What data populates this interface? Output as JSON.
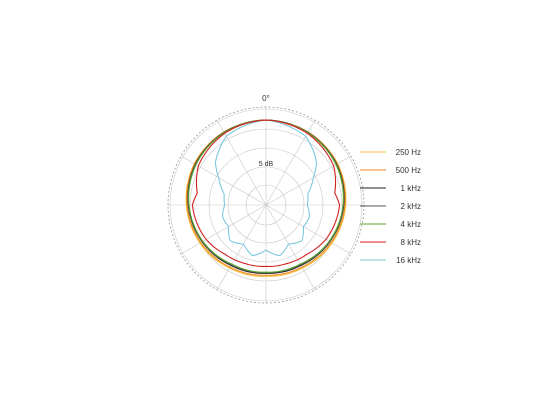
{
  "chart_data": {
    "type": "polar",
    "title": "",
    "angle_label": "0°",
    "radial_scale_label": "5 dB",
    "grid": true,
    "legend_position": "right",
    "series": [
      {
        "name": "250 Hz",
        "color": "#f5c242",
        "response_db_by_angle": [
          [
            0,
            0
          ],
          [
            30,
            -0.2
          ],
          [
            60,
            -0.6
          ],
          [
            90,
            -1.4
          ],
          [
            120,
            -2.3
          ],
          [
            150,
            -3.2
          ],
          [
            180,
            -3.6
          ]
        ]
      },
      {
        "name": "500 Hz",
        "color": "#f08a24",
        "response_db_by_angle": [
          [
            0,
            0
          ],
          [
            30,
            -0.2
          ],
          [
            60,
            -0.7
          ],
          [
            90,
            -1.6
          ],
          [
            120,
            -2.6
          ],
          [
            150,
            -3.5
          ],
          [
            180,
            -3.9
          ]
        ]
      },
      {
        "name": "1 kHz",
        "color": "#222222",
        "response_db_by_angle": [
          [
            0,
            0
          ],
          [
            30,
            -0.3
          ],
          [
            60,
            -0.9
          ],
          [
            90,
            -1.9
          ],
          [
            120,
            -3.0
          ],
          [
            150,
            -4.0
          ],
          [
            180,
            -4.4
          ]
        ]
      },
      {
        "name": "2 kHz",
        "color": "#555555",
        "response_db_by_angle": [
          [
            0,
            0
          ],
          [
            30,
            -0.3
          ],
          [
            60,
            -1.0
          ],
          [
            90,
            -2.0
          ],
          [
            120,
            -3.1
          ],
          [
            150,
            -4.2
          ],
          [
            180,
            -4.6
          ]
        ]
      },
      {
        "name": "4 kHz",
        "color": "#5aa832",
        "response_db_by_angle": [
          [
            0,
            0
          ],
          [
            30,
            -0.4
          ],
          [
            60,
            -1.1
          ],
          [
            90,
            -2.1
          ],
          [
            120,
            -3.2
          ],
          [
            150,
            -4.4
          ],
          [
            180,
            -4.7
          ]
        ]
      },
      {
        "name": "8 kHz",
        "color": "#d42020",
        "response_db_by_angle": [
          [
            0,
            0
          ],
          [
            30,
            -0.6
          ],
          [
            60,
            -1.8
          ],
          [
            80,
            -4.0
          ],
          [
            90,
            -3.0
          ],
          [
            105,
            -3.6
          ],
          [
            120,
            -4.2
          ],
          [
            140,
            -5.5
          ],
          [
            160,
            -6.0
          ],
          [
            180,
            -6.2
          ]
        ]
      },
      {
        "name": "16 kHz",
        "color": "#7cc8dc",
        "response_db_by_angle": [
          [
            0,
            0
          ],
          [
            30,
            -1.5
          ],
          [
            50,
            -5.0
          ],
          [
            60,
            -8.0
          ],
          [
            75,
            -11.0
          ],
          [
            90,
            -11.5
          ],
          [
            105,
            -10.5
          ],
          [
            120,
            -11.0
          ],
          [
            135,
            -9.0
          ],
          [
            150,
            -10.5
          ],
          [
            165,
            -8.5
          ],
          [
            180,
            -10.5
          ]
        ]
      }
    ]
  }
}
